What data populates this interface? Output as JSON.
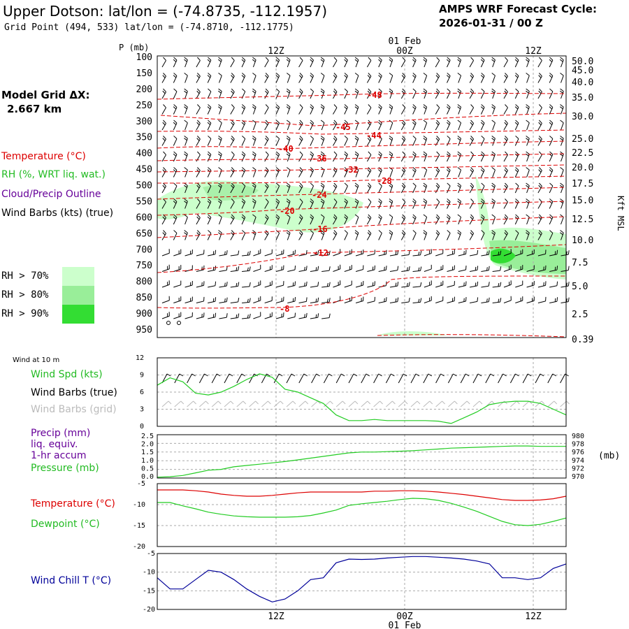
{
  "header": {
    "title": "Upper Dotson:  lat/lon = (-74.8735, -112.1957)",
    "subtitle": "Grid Point (494, 533) lat/lon = (-74.8710, -112.1775)",
    "cycle_line1": "AMPS WRF Forecast Cycle:",
    "cycle_line2": "2026-01-31 / 00  Z",
    "grid_label1": "Model Grid ΔX:",
    "grid_label2": "2.667 km"
  },
  "legend": {
    "temperature": "Temperature (°C)",
    "rh": "RH (%, WRT liq. wat.)",
    "cloud": "Cloud/Precip Outline",
    "wind": "Wind Barbs (kts) (true)",
    "rh70": "RH > 70%",
    "rh80": "RH > 80%",
    "rh90": "RH > 90%",
    "wind10m": "Wind at 10 m",
    "windspd": "Wind Spd (kts)",
    "windbarbs_true": "Wind Barbs (true)",
    "windbarbs_grid": "Wind Barbs (grid)",
    "precip1": "Precip (mm)",
    "precip2": "liq. equiv.",
    "precip3": "1-hr accum",
    "pressure": "Pressure (mb)",
    "pressure_unit": "(mb)",
    "sfc_temp": "Temperature (°C)",
    "dewpoint": "Dewpoint (°C)",
    "windchill": "Wind Chill T (°C)"
  },
  "colors": {
    "temperature": "#dd0000",
    "rh70": "#ccffcc",
    "rh80": "#99ee99",
    "rh90": "#33dd33",
    "windspd": "#22cc22",
    "pressure": "#22cc22",
    "dewpoint": "#22cc22",
    "windchill": "#000099",
    "cloud": "#660099",
    "grid_barbs": "#bbbbbb"
  },
  "time_axis": {
    "top_labels": [
      "12Z",
      "00Z",
      "12Z"
    ],
    "date_label": "01 Feb",
    "bottom_labels": [
      "12Z",
      "00Z",
      "12Z"
    ]
  },
  "chart_data": [
    {
      "type": "cross-section",
      "ylabel": "P (mb)",
      "right_label": "Kft MSL",
      "pressure_ticks": [
        "100",
        "150",
        "200",
        "250",
        "300",
        "350",
        "400",
        "450",
        "500",
        "550",
        "600",
        "650",
        "700",
        "750",
        "800",
        "850",
        "900",
        "950"
      ],
      "height_ticks": [
        "50.0",
        "45.0",
        "40.0",
        "35.0",
        "30.0",
        "25.0",
        "22.5",
        "20.0",
        "17.5",
        "15.0",
        "12.5",
        "10.0",
        "7.5",
        "5.0",
        "2.5",
        "0.39"
      ],
      "temperature_labels": [
        "-48",
        "-45",
        "-44",
        "-40",
        "-36",
        "-32",
        "-28",
        "-24",
        "-20",
        "-16",
        "-12",
        "-8"
      ]
    },
    {
      "type": "line",
      "name": "Wind Spd (kts)",
      "y_ticks": [
        "12",
        "9",
        "6",
        "3",
        "0"
      ],
      "ylim": [
        0,
        12
      ],
      "values": [
        7.2,
        8.5,
        7.8,
        5.8,
        5.5,
        6.0,
        7.0,
        8.2,
        9.2,
        8.6,
        6.5,
        6.0,
        5.0,
        4.0,
        2.0,
        1.0,
        1.0,
        1.2,
        1.0,
        1.0,
        1.0,
        1.0,
        0.9,
        0.5,
        1.5,
        2.5,
        3.8,
        4.2,
        4.4,
        4.4,
        4.0,
        3.0,
        2.0
      ]
    },
    {
      "type": "line",
      "name": "Pressure (mb)",
      "y_ticks_left": [
        "2.5",
        "2.0",
        "1.5",
        "1.0",
        "0.5",
        "0.0"
      ],
      "y_ticks_right": [
        "980",
        "978",
        "976",
        "974",
        "972",
        "970"
      ],
      "ylim": [
        970,
        980
      ],
      "values": [
        970.2,
        970.3,
        970.6,
        971.2,
        971.8,
        972.0,
        972.6,
        972.9,
        973.2,
        973.5,
        973.8,
        974.2,
        974.6,
        975.0,
        975.4,
        975.8,
        976.0,
        976.0,
        976.1,
        976.2,
        976.3,
        976.5,
        976.7,
        976.9,
        977.0,
        977.1,
        977.2,
        977.3,
        977.4,
        977.4,
        977.3,
        977.3,
        977.3
      ]
    },
    {
      "type": "line",
      "y_ticks": [
        "-5",
        "-10",
        "-15",
        "-20"
      ],
      "ylim": [
        -20,
        -5
      ],
      "series": [
        {
          "name": "Temperature (°C)",
          "values": [
            -6.5,
            -6.5,
            -6.5,
            -6.7,
            -7.0,
            -7.5,
            -7.8,
            -8.0,
            -8.0,
            -7.8,
            -7.5,
            -7.2,
            -7.0,
            -7.0,
            -7.0,
            -7.0,
            -7.0,
            -6.8,
            -6.8,
            -6.7,
            -6.7,
            -6.8,
            -7.0,
            -7.3,
            -7.6,
            -8.0,
            -8.4,
            -8.8,
            -9.0,
            -9.0,
            -8.9,
            -8.6,
            -8.0
          ]
        },
        {
          "name": "Dewpoint (°C)",
          "values": [
            -9.5,
            -9.5,
            -10.3,
            -11.0,
            -11.8,
            -12.3,
            -12.7,
            -12.9,
            -13.0,
            -13.0,
            -13.0,
            -12.9,
            -12.6,
            -12.0,
            -11.3,
            -10.2,
            -9.8,
            -9.5,
            -9.2,
            -8.8,
            -8.5,
            -8.6,
            -9.0,
            -9.7,
            -10.6,
            -11.6,
            -12.8,
            -14.0,
            -14.8,
            -15.0,
            -14.7,
            -14.0,
            -13.2
          ]
        }
      ]
    },
    {
      "type": "line",
      "name": "Wind Chill T (°C)",
      "y_ticks": [
        "-5",
        "-10",
        "-15",
        "-20"
      ],
      "ylim": [
        -20,
        -5
      ],
      "values": [
        -11.5,
        -14.5,
        -14.5,
        -12.0,
        -9.5,
        -10.0,
        -12.0,
        -14.5,
        -16.5,
        -18.0,
        -17.2,
        -15.0,
        -12.0,
        -11.5,
        -7.5,
        -6.5,
        -6.6,
        -6.5,
        -6.2,
        -6.0,
        -5.8,
        -5.8,
        -6.0,
        -6.2,
        -6.5,
        -7.0,
        -7.8,
        -11.5,
        -11.5,
        -12.0,
        -11.5,
        -9.0,
        -7.8
      ]
    }
  ]
}
